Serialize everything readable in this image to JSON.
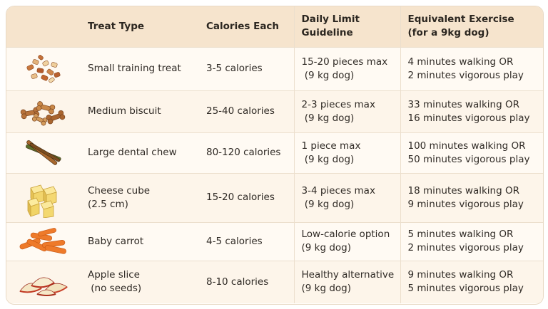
{
  "headers": {
    "treat_type": "Treat Type",
    "calories_each": "Calories Each",
    "daily_limit_line1": "Daily Limit",
    "daily_limit_line2": "Guideline",
    "exercise_line1": "Equivalent Exercise",
    "exercise_line2": "(for a 9kg dog)"
  },
  "rows": [
    {
      "icon": "training-treats-icon",
      "type": [
        "Small training treat"
      ],
      "calories": "3-5 calories",
      "limit": [
        "15-20 pieces max",
        " (9 kg dog)"
      ],
      "exercise": [
        "4 minutes walking OR",
        "2 minutes vigorous play"
      ]
    },
    {
      "icon": "dog-biscuits-icon",
      "type": [
        "Medium biscuit"
      ],
      "calories": "25-40 calories",
      "limit": [
        "2-3 pieces max",
        " (9 kg dog)"
      ],
      "exercise": [
        "33 minutes walking OR",
        "16 minutes vigorous play"
      ]
    },
    {
      "icon": "dental-chew-icon",
      "type": [
        "Large dental chew"
      ],
      "calories": "80-120 calories",
      "limit": [
        "1 piece max",
        " (9 kg dog)"
      ],
      "exercise": [
        "100 minutes walking OR",
        "50 minutes vigorous play"
      ]
    },
    {
      "icon": "cheese-cubes-icon",
      "type": [
        "Cheese cube",
        "(2.5 cm)"
      ],
      "calories": "15-20 calories",
      "limit": [
        "3-4 pieces max",
        " (9 kg dog)"
      ],
      "exercise": [
        "18 minutes walking OR",
        "9 minutes vigorous play"
      ]
    },
    {
      "icon": "baby-carrots-icon",
      "type": [
        "Baby carrot"
      ],
      "calories": "4-5 calories",
      "limit": [
        "Low-calorie option",
        "(9 kg dog)"
      ],
      "exercise": [
        "5 minutes walking OR",
        "2 minutes vigorous play"
      ]
    },
    {
      "icon": "apple-slices-icon",
      "type": [
        "Apple slice",
        " (no seeds)"
      ],
      "calories": "8-10 calories",
      "limit": [
        "Healthy alternative",
        "(9 kg dog)"
      ],
      "exercise": [
        "9 minutes walking OR",
        "5 minutes vigorous play"
      ]
    }
  ]
}
